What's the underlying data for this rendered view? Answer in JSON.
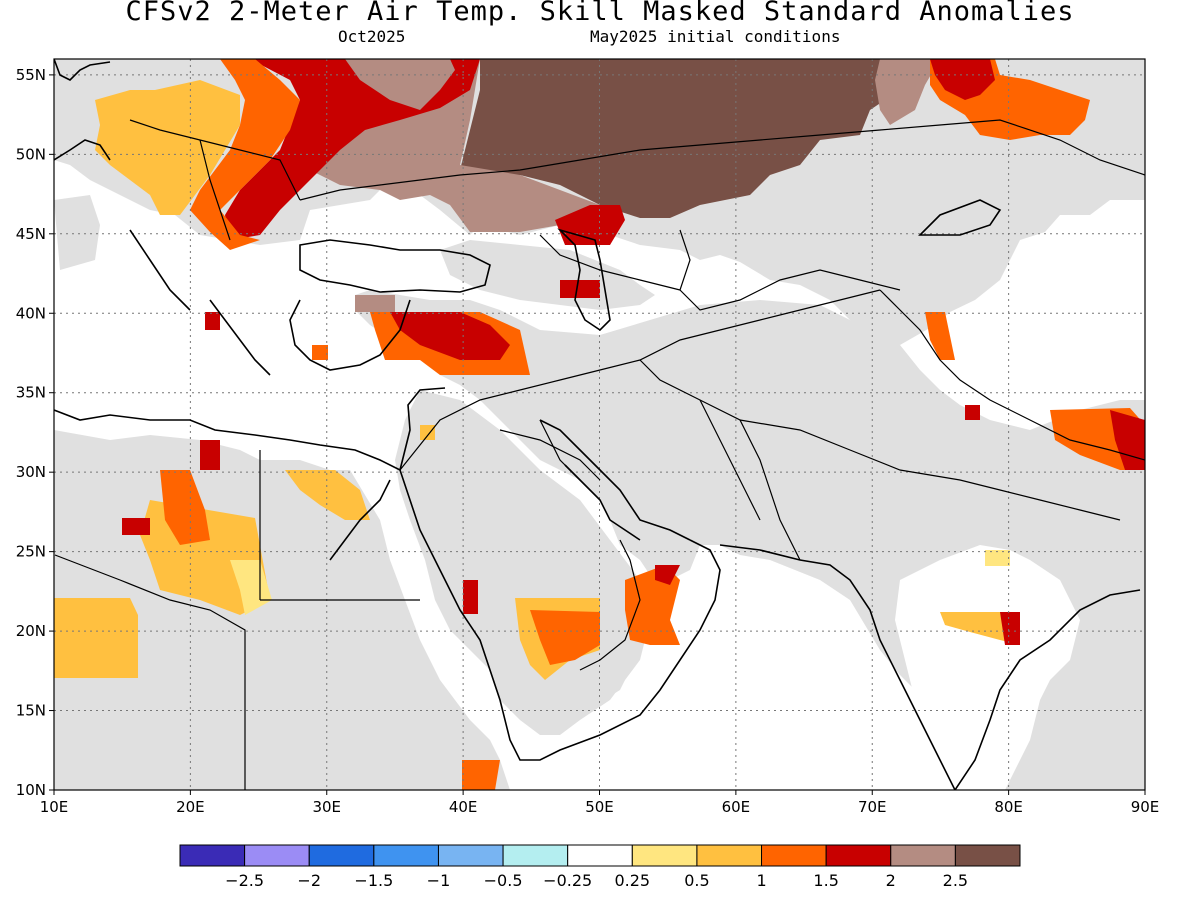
{
  "header": {
    "title": "CFSv2 2-Meter Air Temp. Skill Masked Standard Anomalies",
    "valid_month": "Oct2025",
    "initial_conditions": "May2025 initial conditions"
  },
  "map": {
    "lon_range": [
      10,
      90
    ],
    "lat_range": [
      10,
      56
    ],
    "lon_ticks": [
      "10E",
      "20E",
      "30E",
      "40E",
      "50E",
      "60E",
      "70E",
      "80E",
      "90E"
    ],
    "lat_ticks": [
      "55N",
      "50N",
      "45N",
      "40N",
      "35N",
      "30N",
      "25N",
      "20N",
      "15N",
      "10N"
    ],
    "masked_color": "#e0e0e0",
    "grid": "dotted"
  },
  "colorbar": {
    "colors": [
      "#3a2bb6",
      "#9b8cf5",
      "#1f6be0",
      "#3f93f0",
      "#78b4f2",
      "#b4eef0",
      "#ffffff",
      "#ffe680",
      "#ffc040",
      "#ff6400",
      "#c80000",
      "#b48c82",
      "#785046"
    ],
    "labels": [
      "-2.5",
      "-2",
      "-1.5",
      "-1",
      "-0.5",
      "-0.25",
      "0.25",
      "0.5",
      "1",
      "1.5",
      "2",
      "2.5"
    ]
  },
  "anomaly_regions": [
    {
      "name": "russia-central",
      "level": "2.5",
      "color": "#785046"
    },
    {
      "name": "ukraine-russia",
      "level": "2",
      "color": "#b48c82"
    },
    {
      "name": "eastern-europe",
      "level": "1.5",
      "color": "#c80000"
    },
    {
      "name": "central-europe",
      "level": "1",
      "color": "#ff6400"
    },
    {
      "name": "poland",
      "level": "0.5",
      "color": "#ffc040"
    },
    {
      "name": "turkey-east",
      "level": "1.5",
      "color": "#ff6400"
    },
    {
      "name": "arabia",
      "level": "1",
      "color": "#ff6400"
    },
    {
      "name": "oman",
      "level": "1",
      "color": "#ff6400"
    },
    {
      "name": "libya-egypt",
      "level": "0.5",
      "color": "#ffc040"
    },
    {
      "name": "tibet",
      "level": "1.5",
      "color": "#ff6400"
    },
    {
      "name": "siberia-east",
      "level": "1.5",
      "color": "#ff6400"
    }
  ]
}
